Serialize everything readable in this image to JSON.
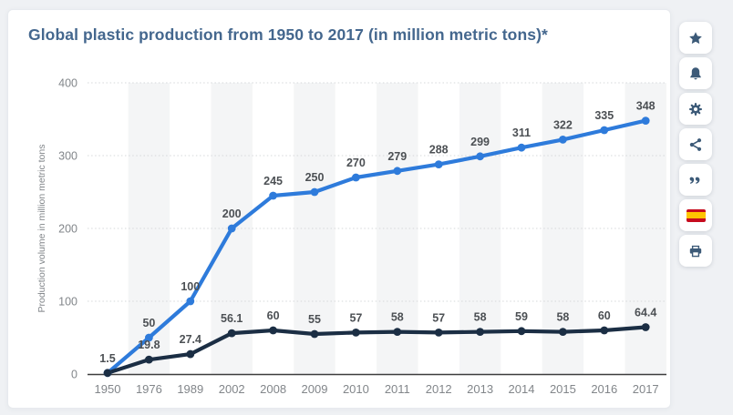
{
  "card": {
    "title": "Global plastic production from 1950 to 2017 (in million metric tons)*",
    "title_color": "#44678e"
  },
  "toolbar": {
    "buttons": [
      {
        "icon": "star-icon"
      },
      {
        "icon": "bell-icon"
      },
      {
        "icon": "gear-icon"
      },
      {
        "icon": "share-icon"
      },
      {
        "icon": "quote-icon"
      },
      {
        "icon": "spain-flag-icon"
      },
      {
        "icon": "printer-icon"
      }
    ],
    "icon_color": "#3c5a78",
    "flag_red": "#c60b1e",
    "flag_yellow": "#ffc400"
  },
  "chart_data": {
    "type": "line",
    "title": "Global plastic production from 1950 to 2017 (in million metric tons)*",
    "xlabel": "",
    "ylabel": "Production volume in million metric tons",
    "categories": [
      "1950",
      "1976",
      "1989",
      "2002",
      "2008",
      "2009",
      "2010",
      "2011",
      "2012",
      "2013",
      "2014",
      "2015",
      "2016",
      "2017"
    ],
    "yticks": [
      0,
      100,
      200,
      300,
      400
    ],
    "ylim": [
      0,
      400
    ],
    "grid": "dotted-horizontal",
    "plot_bands": "alternating light vertical stripes on every second category",
    "legend": "none",
    "series": [
      {
        "name": "blue-series",
        "color": "#2e7bdb",
        "values": [
          1.5,
          50,
          100,
          200,
          245,
          250,
          270,
          279,
          288,
          299,
          311,
          322,
          335,
          348
        ],
        "labels": [
          "1.5",
          "50",
          "100",
          "200",
          "245",
          "250",
          "270",
          "279",
          "288",
          "299",
          "311",
          "322",
          "335",
          "348"
        ]
      },
      {
        "name": "dark-series",
        "color": "#1b2e44",
        "values": [
          1.5,
          19.8,
          27.4,
          56.1,
          60,
          55,
          57,
          58,
          57,
          58,
          59,
          58,
          60,
          64.4
        ],
        "labels": [
          "",
          "19.8",
          "27.4",
          "56.1",
          "60",
          "55",
          "57",
          "58",
          "57",
          "58",
          "59",
          "58",
          "60",
          "64.4"
        ]
      }
    ],
    "colors": {
      "band": "#f4f5f6",
      "gridline": "#d6d8da",
      "axis_line": "#3d3d3d",
      "tick_label": "#82868a",
      "data_label": "#4c5054"
    }
  }
}
